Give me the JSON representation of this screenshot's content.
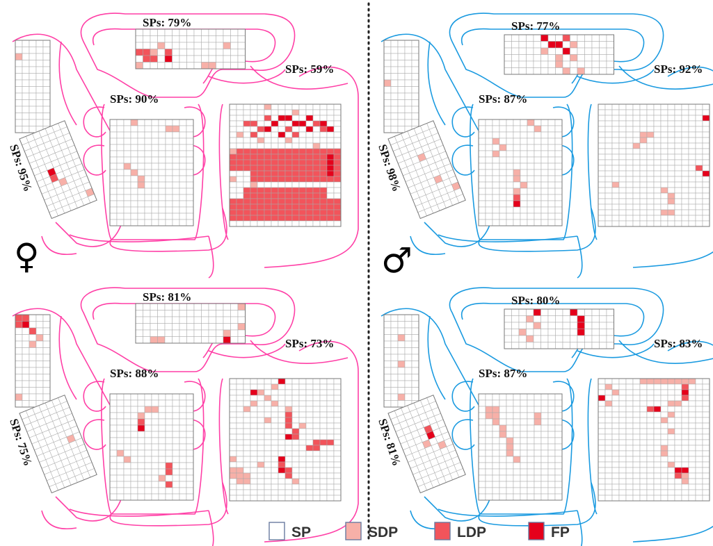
{
  "colors": {
    "female": "#ff3fa6",
    "male": "#1a9ae0",
    "SP": "#ffffff",
    "SDP": "#f7b0a8",
    "LDP": "#f2545b",
    "FP": "#e5001b",
    "grid": "#a8a8a8"
  },
  "symbols": {
    "female": "♀",
    "male": "♂"
  },
  "legend": [
    {
      "code": "SP",
      "label": "SP",
      "color": "#ffffff"
    },
    {
      "code": "SDP",
      "label": "SDP",
      "color": "#f7b0a8"
    },
    {
      "code": "LDP",
      "label": "LDP",
      "color": "#f2545b"
    },
    {
      "code": "FP",
      "label": "FP",
      "color": "#e5001b"
    }
  ],
  "panels": [
    {
      "sex": "female",
      "position": "top",
      "labels": {
        "top": "SPs: 79%",
        "mid": "SPs: 90%",
        "right": "SPs: 59%",
        "left": "SPs: 95%"
      }
    },
    {
      "sex": "male",
      "position": "top",
      "labels": {
        "top": "SPs: 77%",
        "mid": "SPs: 87%",
        "right": "SPs: 92%",
        "left": "SPs: 98%"
      }
    },
    {
      "sex": "female",
      "position": "bottom",
      "labels": {
        "top": "SPs: 81%",
        "mid": "SPs: 88%",
        "right": "SPs: 73%",
        "left": "SPs: 75%"
      }
    },
    {
      "sex": "male",
      "position": "bottom",
      "labels": {
        "top": "SPs: 80%",
        "mid": "SPs: 87%",
        "right": "SPs: 83%",
        "left": "SPs: 81%"
      }
    }
  ]
}
